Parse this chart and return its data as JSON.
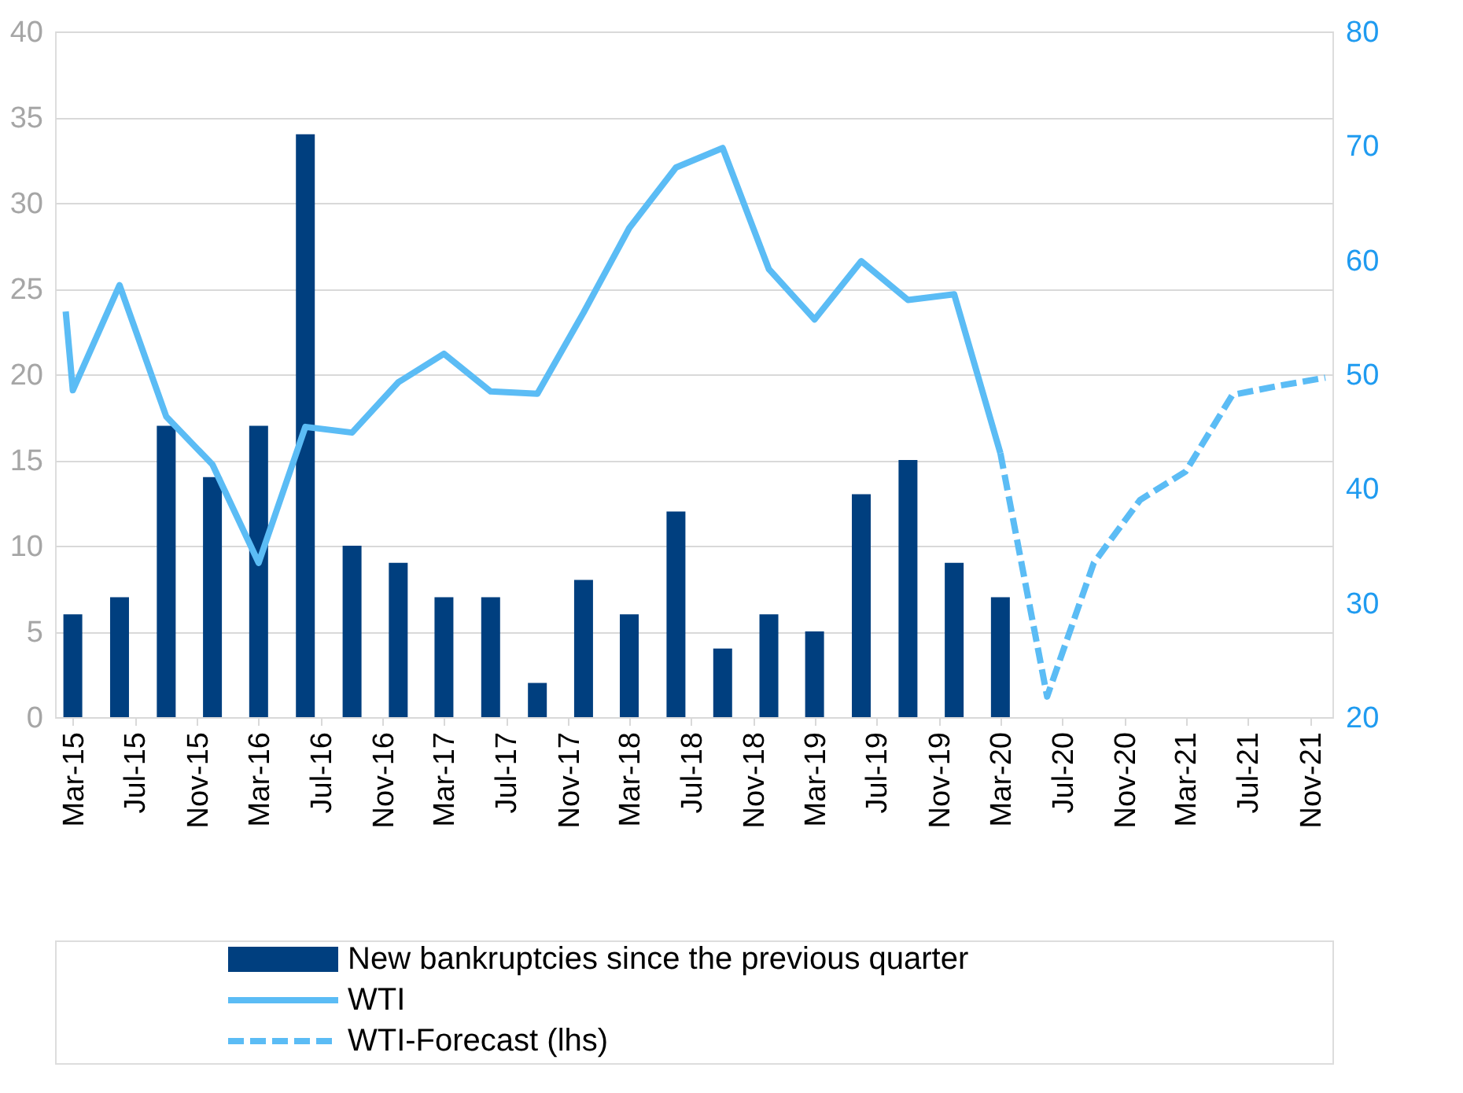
{
  "chart_data": {
    "type": "bar",
    "xlim": [
      "2015-01-25",
      "2021-12-15"
    ],
    "xticks": [
      {
        "value": "2015-03",
        "label": "Mar-15"
      },
      {
        "value": "2015-07",
        "label": "Jul-15"
      },
      {
        "value": "2015-11",
        "label": "Nov-15"
      },
      {
        "value": "2016-03",
        "label": "Mar-16"
      },
      {
        "value": "2016-07",
        "label": "Jul-16"
      },
      {
        "value": "2016-11",
        "label": "Nov-16"
      },
      {
        "value": "2017-03",
        "label": "Mar-17"
      },
      {
        "value": "2017-07",
        "label": "Jul-17"
      },
      {
        "value": "2017-11",
        "label": "Nov-17"
      },
      {
        "value": "2018-03",
        "label": "Mar-18"
      },
      {
        "value": "2018-07",
        "label": "Jul-18"
      },
      {
        "value": "2018-11",
        "label": "Nov-18"
      },
      {
        "value": "2019-03",
        "label": "Mar-19"
      },
      {
        "value": "2019-07",
        "label": "Jul-19"
      },
      {
        "value": "2019-11",
        "label": "Nov-19"
      },
      {
        "value": "2020-03",
        "label": "Mar-20"
      },
      {
        "value": "2020-07",
        "label": "Jul-20"
      },
      {
        "value": "2020-11",
        "label": "Nov-20"
      },
      {
        "value": "2021-03",
        "label": "Mar-21"
      },
      {
        "value": "2021-07",
        "label": "Jul-21"
      },
      {
        "value": "2021-11",
        "label": "Nov-21"
      }
    ],
    "ylim": [
      0,
      40
    ],
    "yticks": [
      0,
      5,
      10,
      15,
      20,
      25,
      30,
      35,
      40
    ],
    "y2lim": [
      20,
      80
    ],
    "y2ticks": [
      20,
      30,
      40,
      50,
      60,
      70,
      80
    ],
    "grid": "y",
    "legend": "bottom",
    "series": [
      {
        "name": "New bankruptcies since the previous quarter",
        "color": "#003f7f",
        "x": [
          "2015-03",
          "2015-06",
          "2015-09",
          "2015-12",
          "2016-03",
          "2016-06",
          "2016-09",
          "2016-12",
          "2017-03",
          "2017-06",
          "2017-09",
          "2017-12",
          "2018-03",
          "2018-06",
          "2018-09",
          "2018-12",
          "2019-03",
          "2019-06",
          "2019-09",
          "2019-12",
          "2020-03"
        ],
        "values": [
          6,
          7,
          17,
          14,
          17,
          34,
          10,
          9,
          7,
          7,
          2,
          8,
          6,
          12,
          4,
          6,
          5,
          13,
          15,
          9,
          7
        ]
      },
      {
        "name": "WTI",
        "type": "line",
        "axis": "y2",
        "line_style": "solid",
        "color": "#5bbcf5",
        "x": [
          "2015-02-15",
          "2015-03",
          "2015-06",
          "2015-09",
          "2015-12",
          "2016-03",
          "2016-06",
          "2016-09",
          "2016-12",
          "2017-03",
          "2017-06",
          "2017-09",
          "2017-12",
          "2018-03",
          "2018-06",
          "2018-09",
          "2018-12",
          "2019-03",
          "2019-06",
          "2019-09",
          "2019-12",
          "2020-03"
        ],
        "values": [
          55.5,
          48.6,
          57.8,
          46.3,
          42.1,
          33.5,
          45.4,
          44.9,
          49.3,
          51.8,
          48.5,
          48.3,
          55.4,
          62.8,
          68.1,
          69.8,
          59.2,
          54.8,
          59.9,
          56.5,
          57.0,
          43.1
        ]
      },
      {
        "name": "WTI-Forecast (lhs)",
        "type": "line",
        "axis": "y2",
        "line_style": "dashed",
        "color": "#5bbcf5",
        "x": [
          "2020-03",
          "2020-06",
          "2020-09",
          "2020-12",
          "2021-03",
          "2021-06",
          "2021-09",
          "2021-12"
        ],
        "values": [
          43.1,
          21.8,
          33.5,
          39.0,
          41.5,
          48.2,
          49.0,
          49.7
        ]
      }
    ]
  }
}
